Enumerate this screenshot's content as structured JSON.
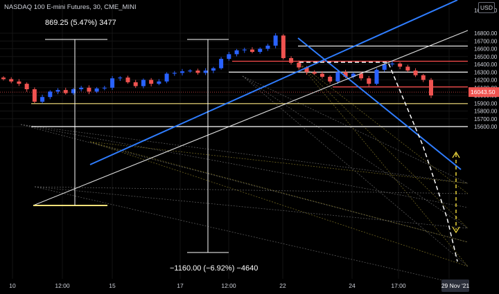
{
  "header": {
    "symbol_title": "NASDAQ 100 E-mini Futures, 30, CME_MINI",
    "currency_label": "USD"
  },
  "measurements": {
    "upper_label": "869.25 (5.47%) 3477",
    "lower_label": "−1160.00 (−6.92%) −4640"
  },
  "price_scale": {
    "ticks": [
      "16800.00",
      "16700.00",
      "16600.00",
      "16500.00",
      "16400.00",
      "16300.00",
      "16200.00",
      "16100.00",
      "16000.00",
      "15900.00",
      "15800.00",
      "15700.00",
      "15600.00"
    ],
    "current_price": "16043.50",
    "top_partial": "16900.00"
  },
  "time_scale": {
    "labels": [
      "10",
      "12:00",
      "15",
      "17",
      "12:00",
      "22",
      "24",
      "17:00"
    ],
    "current_date": "29 Nov '21"
  },
  "colors": {
    "background": "#000000",
    "trend_blue": "#2f7dff",
    "level_red": "#ff4d4d",
    "level_white": "#ffffff",
    "level_yellow": "#f5e27a",
    "candle_up": "#2962ff",
    "candle_down": "#ef5350",
    "price_badge": "#ef5350"
  },
  "chart_data": {
    "type": "candlestick",
    "symbol": "NQ1!",
    "price_range": [
      15560,
      16900
    ],
    "horizontal_levels": [
      {
        "price": 16635,
        "color": "white"
      },
      {
        "price": 16440,
        "color": "red"
      },
      {
        "price": 16300,
        "color": "white"
      },
      {
        "price": 16110,
        "color": "red"
      },
      {
        "price": 15895,
        "color": "yellow"
      },
      {
        "price": 15600,
        "color": "white"
      }
    ],
    "approx_closes": [
      16210,
      16180,
      16150,
      16080,
      15920,
      15980,
      16050,
      16070,
      16030,
      16080,
      16100,
      16050,
      16090,
      16100,
      16220,
      16230,
      16170,
      16120,
      16200,
      16150,
      16180,
      16280,
      16290,
      16310,
      16320,
      16290,
      16320,
      16350,
      16470,
      16530,
      16580,
      16590,
      16560,
      16600,
      16640,
      16770,
      16480,
      16420,
      16360,
      16300,
      16280,
      16240,
      16180,
      16300,
      16240,
      16280,
      16220,
      16150,
      16330,
      16400,
      16410,
      16370,
      16320,
      16260,
      16200,
      16000
    ]
  }
}
